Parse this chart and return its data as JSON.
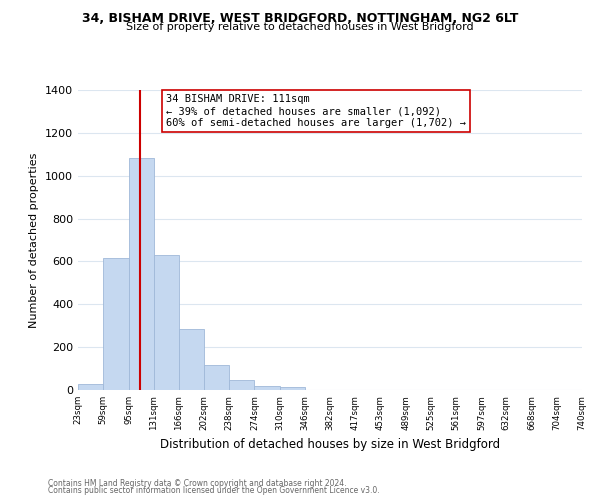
{
  "title_line1": "34, BISHAM DRIVE, WEST BRIDGFORD, NOTTINGHAM, NG2 6LT",
  "title_line2": "Size of property relative to detached houses in West Bridgford",
  "xlabel": "Distribution of detached houses by size in West Bridgford",
  "ylabel": "Number of detached properties",
  "footer_line1": "Contains HM Land Registry data © Crown copyright and database right 2024.",
  "footer_line2": "Contains public sector information licensed under the Open Government Licence v3.0.",
  "bin_edges": [
    23,
    59,
    95,
    131,
    166,
    202,
    238,
    274,
    310,
    346,
    382,
    417,
    453,
    489,
    525,
    561,
    597,
    632,
    668,
    704,
    740
  ],
  "bar_heights": [
    30,
    615,
    1085,
    630,
    285,
    115,
    47,
    20,
    13,
    0,
    0,
    0,
    0,
    0,
    0,
    0,
    0,
    0,
    0,
    0
  ],
  "bar_color": "#c5d8f0",
  "bar_edgecolor": "#a0b8d8",
  "property_size": 111,
  "vline_color": "#cc0000",
  "annotation_line1": "34 BISHAM DRIVE: 111sqm",
  "annotation_line2": "← 39% of detached houses are smaller (1,092)",
  "annotation_line3": "60% of semi-detached houses are larger (1,702) →",
  "annotation_box_edgecolor": "#cc0000",
  "ylim": [
    0,
    1400
  ],
  "yticks": [
    0,
    200,
    400,
    600,
    800,
    1000,
    1200,
    1400
  ],
  "background_color": "#ffffff",
  "grid_color": "#dce6f0"
}
